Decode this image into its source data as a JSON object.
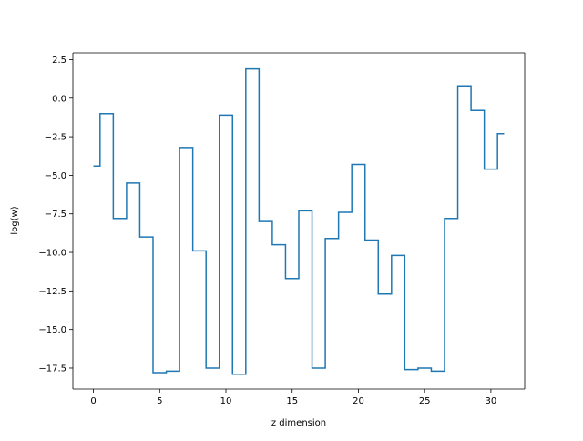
{
  "chart_data": {
    "type": "line",
    "drawstyle": "steps-mid",
    "title": "",
    "xlabel": "z dimension",
    "ylabel": "log(w)",
    "xlim": [
      -1.55,
      32.55
    ],
    "ylim": [
      -18.86,
      2.94
    ],
    "xticks": [
      0,
      5,
      10,
      15,
      20,
      25,
      30
    ],
    "yticks": [
      2.5,
      0.0,
      -2.5,
      -5.0,
      -7.5,
      -10.0,
      -12.5,
      -15.0,
      -17.5
    ],
    "ytick_labels": [
      "2.5",
      "0.0",
      "−2.5",
      "−5.0",
      "−7.5",
      "−10.0",
      "−12.5",
      "−15.0",
      "−17.5"
    ],
    "grid": false,
    "legend": "none",
    "series": [
      {
        "color": "#1f77b4",
        "x": [
          0,
          1,
          2,
          3,
          4,
          5,
          6,
          7,
          8,
          9,
          10,
          11,
          12,
          13,
          14,
          15,
          16,
          17,
          18,
          19,
          20,
          21,
          22,
          23,
          24,
          25,
          26,
          27,
          28,
          29,
          30,
          31
        ],
        "values": [
          -4.4,
          -1.0,
          -7.8,
          -5.5,
          -9.0,
          -17.8,
          -17.7,
          -3.2,
          -9.9,
          -17.5,
          -1.1,
          -17.9,
          1.9,
          -8.0,
          -9.5,
          -11.7,
          -7.3,
          -17.5,
          -9.1,
          -7.4,
          -4.3,
          -9.2,
          -12.7,
          -10.2,
          -17.6,
          -17.5,
          -17.7,
          -7.8,
          0.8,
          -0.8,
          -4.6,
          -2.3
        ]
      }
    ]
  }
}
